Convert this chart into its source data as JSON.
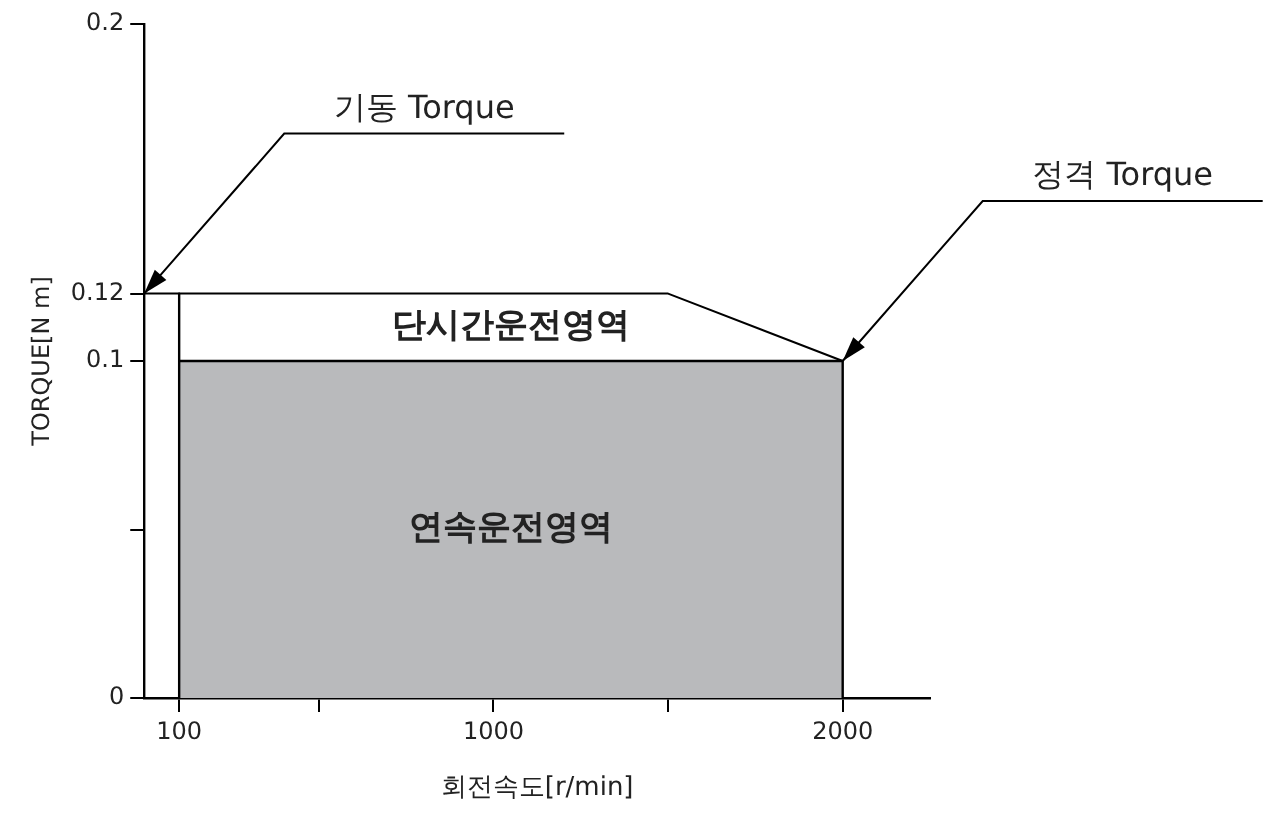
{
  "chart_data": {
    "type": "area",
    "xlabel": "회전속도[r/min]",
    "ylabel": "TORQUE[N m]",
    "series": [
      {
        "color": "#b9babc",
        "x": [
          100,
          100,
          100,
          2000,
          2000
        ],
        "values": [
          0,
          0.12,
          0.1,
          0.1,
          0
        ]
      },
      {
        "type": "line",
        "color": "#000000",
        "x": [
          0,
          1500,
          2000
        ],
        "values": [
          0.12,
          0.12,
          0.1
        ]
      }
    ],
    "xlim": [
      0,
      2250
    ],
    "xticks": [
      100,
      {
        "value": 500,
        "label": null
      },
      1000,
      {
        "value": 1500,
        "label": null
      },
      2000
    ],
    "ylim": [
      0,
      0.2
    ],
    "yticks": [
      0,
      {
        "value": 0.05,
        "label": null
      },
      0.1,
      0.12,
      0.2
    ],
    "annotations": [
      "단시간운전영역",
      "연속운전영역",
      {
        "text": "기동 Torque",
        "x": 0,
        "y": 0.12
      },
      {
        "text": "정격 Torque",
        "x": 2000,
        "y": 0.1
      }
    ],
    "legend": false,
    "grid": false,
    "marker": "none"
  }
}
